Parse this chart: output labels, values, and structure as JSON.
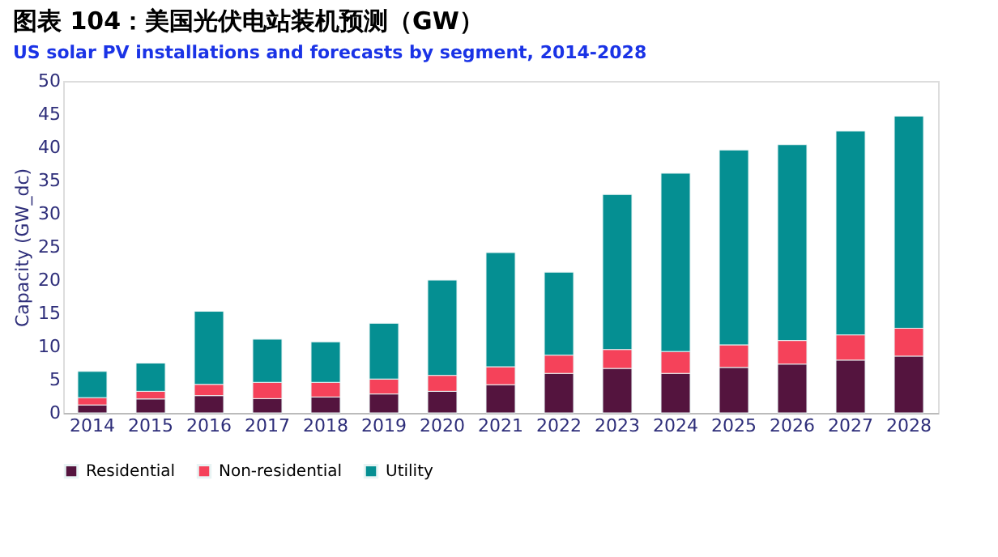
{
  "chart_data": {
    "type": "bar",
    "stacked": true,
    "title": "图表 104：美国光伏电站装机预测（GW）",
    "subtitle": "US solar PV installations and forecasts by segment, 2014-2028",
    "ylabel": "Capacity (GW_dc)",
    "categories": [
      "2014",
      "2015",
      "2016",
      "2017",
      "2018",
      "2019",
      "2020",
      "2021",
      "2022",
      "2023",
      "2024",
      "2025",
      "2026",
      "2027",
      "2028"
    ],
    "series": [
      {
        "name": "Residential",
        "color": "#54143e",
        "values": [
          1.2,
          2.1,
          2.6,
          2.15,
          2.4,
          2.85,
          3.25,
          4.25,
          5.95,
          6.7,
          5.95,
          6.85,
          7.35,
          7.95,
          8.55
        ]
      },
      {
        "name": "Non-residential",
        "color": "#f5425a",
        "values": [
          1.1,
          1.15,
          1.7,
          2.45,
          2.2,
          2.25,
          2.4,
          2.7,
          2.75,
          2.85,
          3.3,
          3.4,
          3.55,
          3.8,
          4.2
        ]
      },
      {
        "name": "Utility",
        "color": "#058f92",
        "values": [
          3.95,
          4.25,
          11.0,
          6.5,
          6.1,
          8.4,
          14.35,
          17.2,
          12.5,
          23.35,
          26.85,
          29.35,
          29.5,
          30.7,
          31.95
        ]
      }
    ],
    "ylim": [
      0,
      50
    ],
    "yticks": [
      0,
      5,
      10,
      15,
      20,
      25,
      30,
      35,
      40,
      45,
      50
    ],
    "grid": false,
    "legend": "bottom"
  }
}
